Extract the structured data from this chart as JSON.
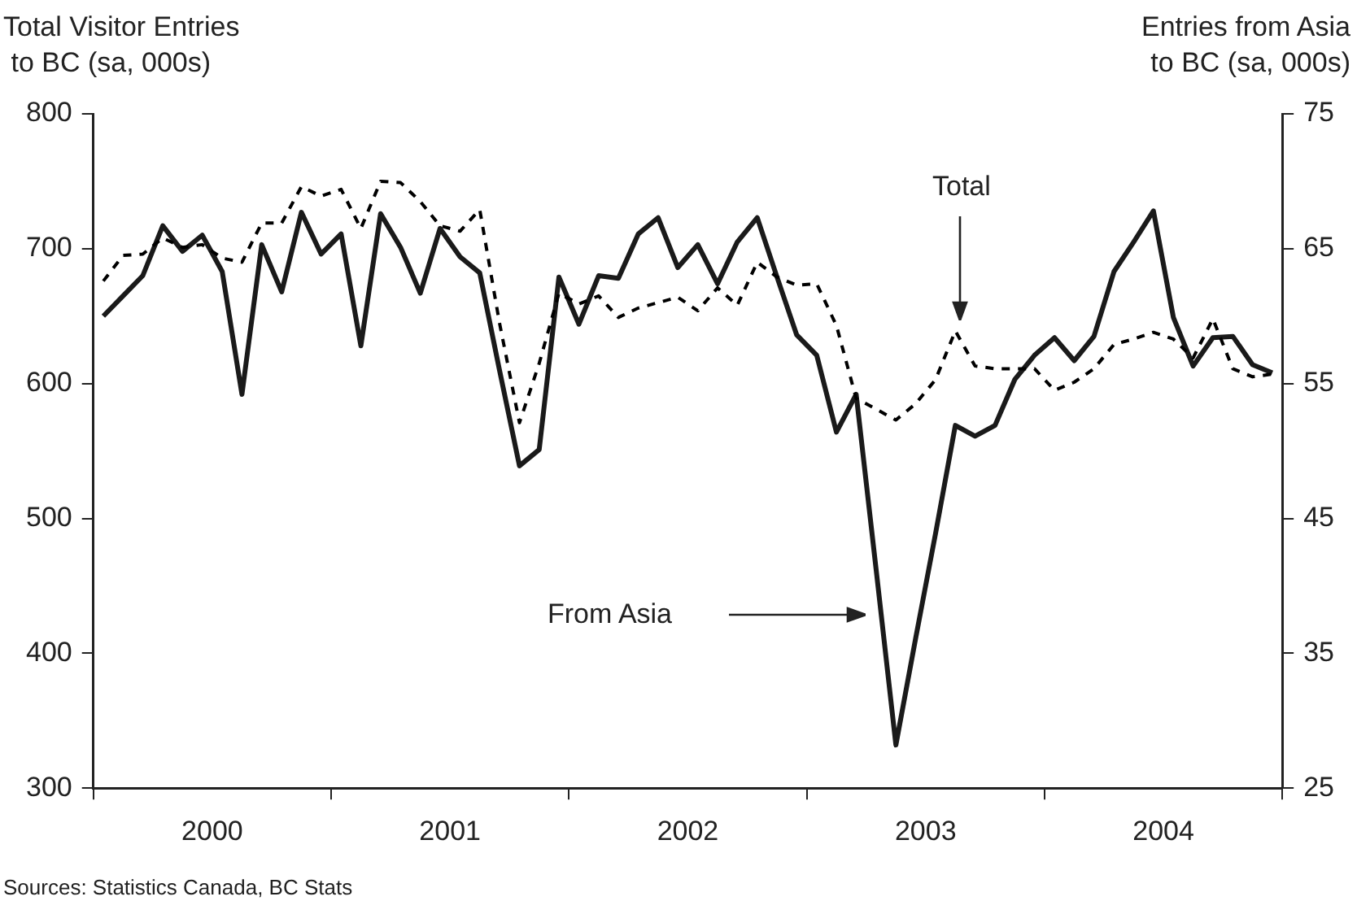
{
  "chart_data": {
    "type": "line",
    "ylabel": "Total Visitor Entries\n to BC (sa, 000s)",
    "y2label": "Entries from Asia\nto BC (sa, 000s)",
    "x": [
      2000.042,
      2000.125,
      2000.208,
      2000.292,
      2000.375,
      2000.458,
      2000.542,
      2000.625,
      2000.708,
      2000.792,
      2000.875,
      2000.958,
      2001.042,
      2001.125,
      2001.208,
      2001.292,
      2001.375,
      2001.458,
      2001.542,
      2001.625,
      2001.708,
      2001.792,
      2001.875,
      2001.958,
      2002.042,
      2002.125,
      2002.208,
      2002.292,
      2002.375,
      2002.458,
      2002.542,
      2002.625,
      2002.708,
      2002.792,
      2002.875,
      2002.958,
      2003.042,
      2003.125,
      2003.208,
      2003.292,
      2003.375,
      2003.458,
      2003.542,
      2003.625,
      2003.708,
      2003.792,
      2003.875,
      2003.958,
      2004.042,
      2004.125,
      2004.208,
      2004.292,
      2004.375,
      2004.458,
      2004.542,
      2004.625,
      2004.708,
      2004.792,
      2004.875,
      2004.958
    ],
    "series": [
      {
        "color": "#000000",
        "line_style": "dashed",
        "axis": "y",
        "values": [
          676,
          695,
          696,
          708,
          701,
          703,
          693,
          690,
          719,
          719,
          746,
          739,
          744,
          715,
          750,
          749,
          735,
          717,
          713,
          729,
          645,
          571,
          615,
          667,
          659,
          665,
          649,
          656,
          660,
          664,
          654,
          671,
          658,
          690,
          679,
          673,
          674,
          643,
          589,
          581,
          573,
          585,
          603,
          639,
          613,
          611,
          611,
          611,
          595,
          601,
          611,
          629,
          633,
          638,
          633,
          619,
          648,
          611,
          605,
          607
        ]
      },
      {
        "color": "#1a1a1a",
        "line_style": "solid",
        "axis": "y2",
        "values": [
          60.0,
          61.5,
          63.0,
          66.7,
          64.8,
          66.0,
          63.3,
          54.2,
          65.3,
          61.8,
          67.7,
          64.6,
          66.1,
          57.8,
          67.6,
          65.1,
          61.7,
          66.5,
          64.4,
          63.2,
          56.0,
          48.9,
          50.1,
          62.9,
          59.4,
          63.0,
          62.8,
          66.1,
          67.3,
          63.6,
          65.3,
          62.4,
          65.5,
          67.3,
          62.9,
          58.6,
          57.1,
          51.4,
          54.2,
          41.2,
          28.2,
          36.1,
          43.9,
          51.9,
          51.1,
          51.9,
          55.3,
          57.1,
          58.4,
          56.7,
          58.5,
          63.3,
          65.5,
          67.8,
          59.9,
          56.3,
          58.4,
          58.5,
          56.4,
          55.8
        ]
      }
    ],
    "xlim": [
      2000,
      2005
    ],
    "xticks": [
      {
        "value": 2000,
        "label": null
      },
      {
        "value": 2000.5,
        "label": "2000"
      },
      {
        "value": 2001,
        "label": null
      },
      {
        "value": 2001.5,
        "label": "2001"
      },
      {
        "value": 2002,
        "label": null
      },
      {
        "value": 2002.5,
        "label": "2002"
      },
      {
        "value": 2003,
        "label": null
      },
      {
        "value": 2003.5,
        "label": "2003"
      },
      {
        "value": 2004,
        "label": null
      },
      {
        "value": 2004.5,
        "label": "2004"
      },
      {
        "value": 2005,
        "label": null
      }
    ],
    "ylim": [
      300,
      800
    ],
    "yticks": [
      300,
      400,
      500,
      600,
      700,
      800
    ],
    "y2lim": [
      25,
      75
    ],
    "y2ticks": [
      25,
      35,
      45,
      55,
      65,
      75
    ],
    "annotations": [
      "Total",
      "From Asia",
      "Sources: Statistics Canada, BC Stats"
    ],
    "grid": false,
    "legend": false,
    "marker": "none"
  }
}
